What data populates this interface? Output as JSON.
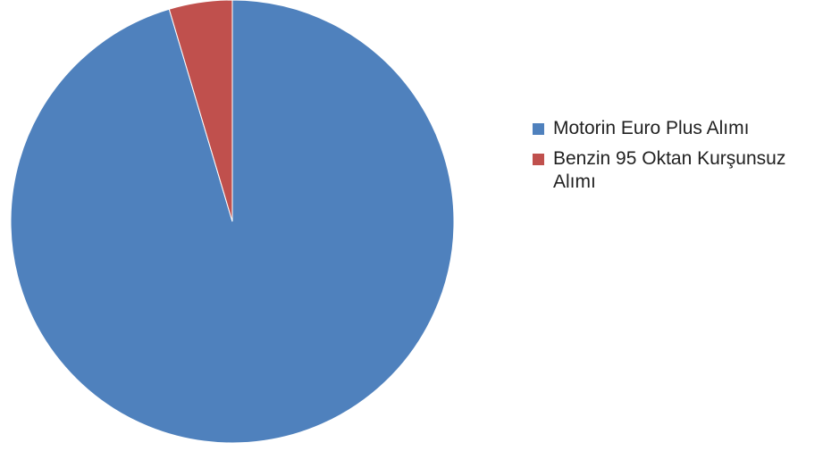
{
  "chart_data": {
    "type": "pie",
    "title": "",
    "start_angle_deg": 0,
    "direction": "clockwise",
    "legend_position": "right",
    "slices": [
      {
        "label": "Motorin Euro Plus Alımı",
        "value": 95.4,
        "color": "#4f81bd"
      },
      {
        "label": "Benzin 95 Oktan Kurşunsuz Alımı",
        "value": 4.6,
        "color": "#c0504d"
      }
    ]
  }
}
